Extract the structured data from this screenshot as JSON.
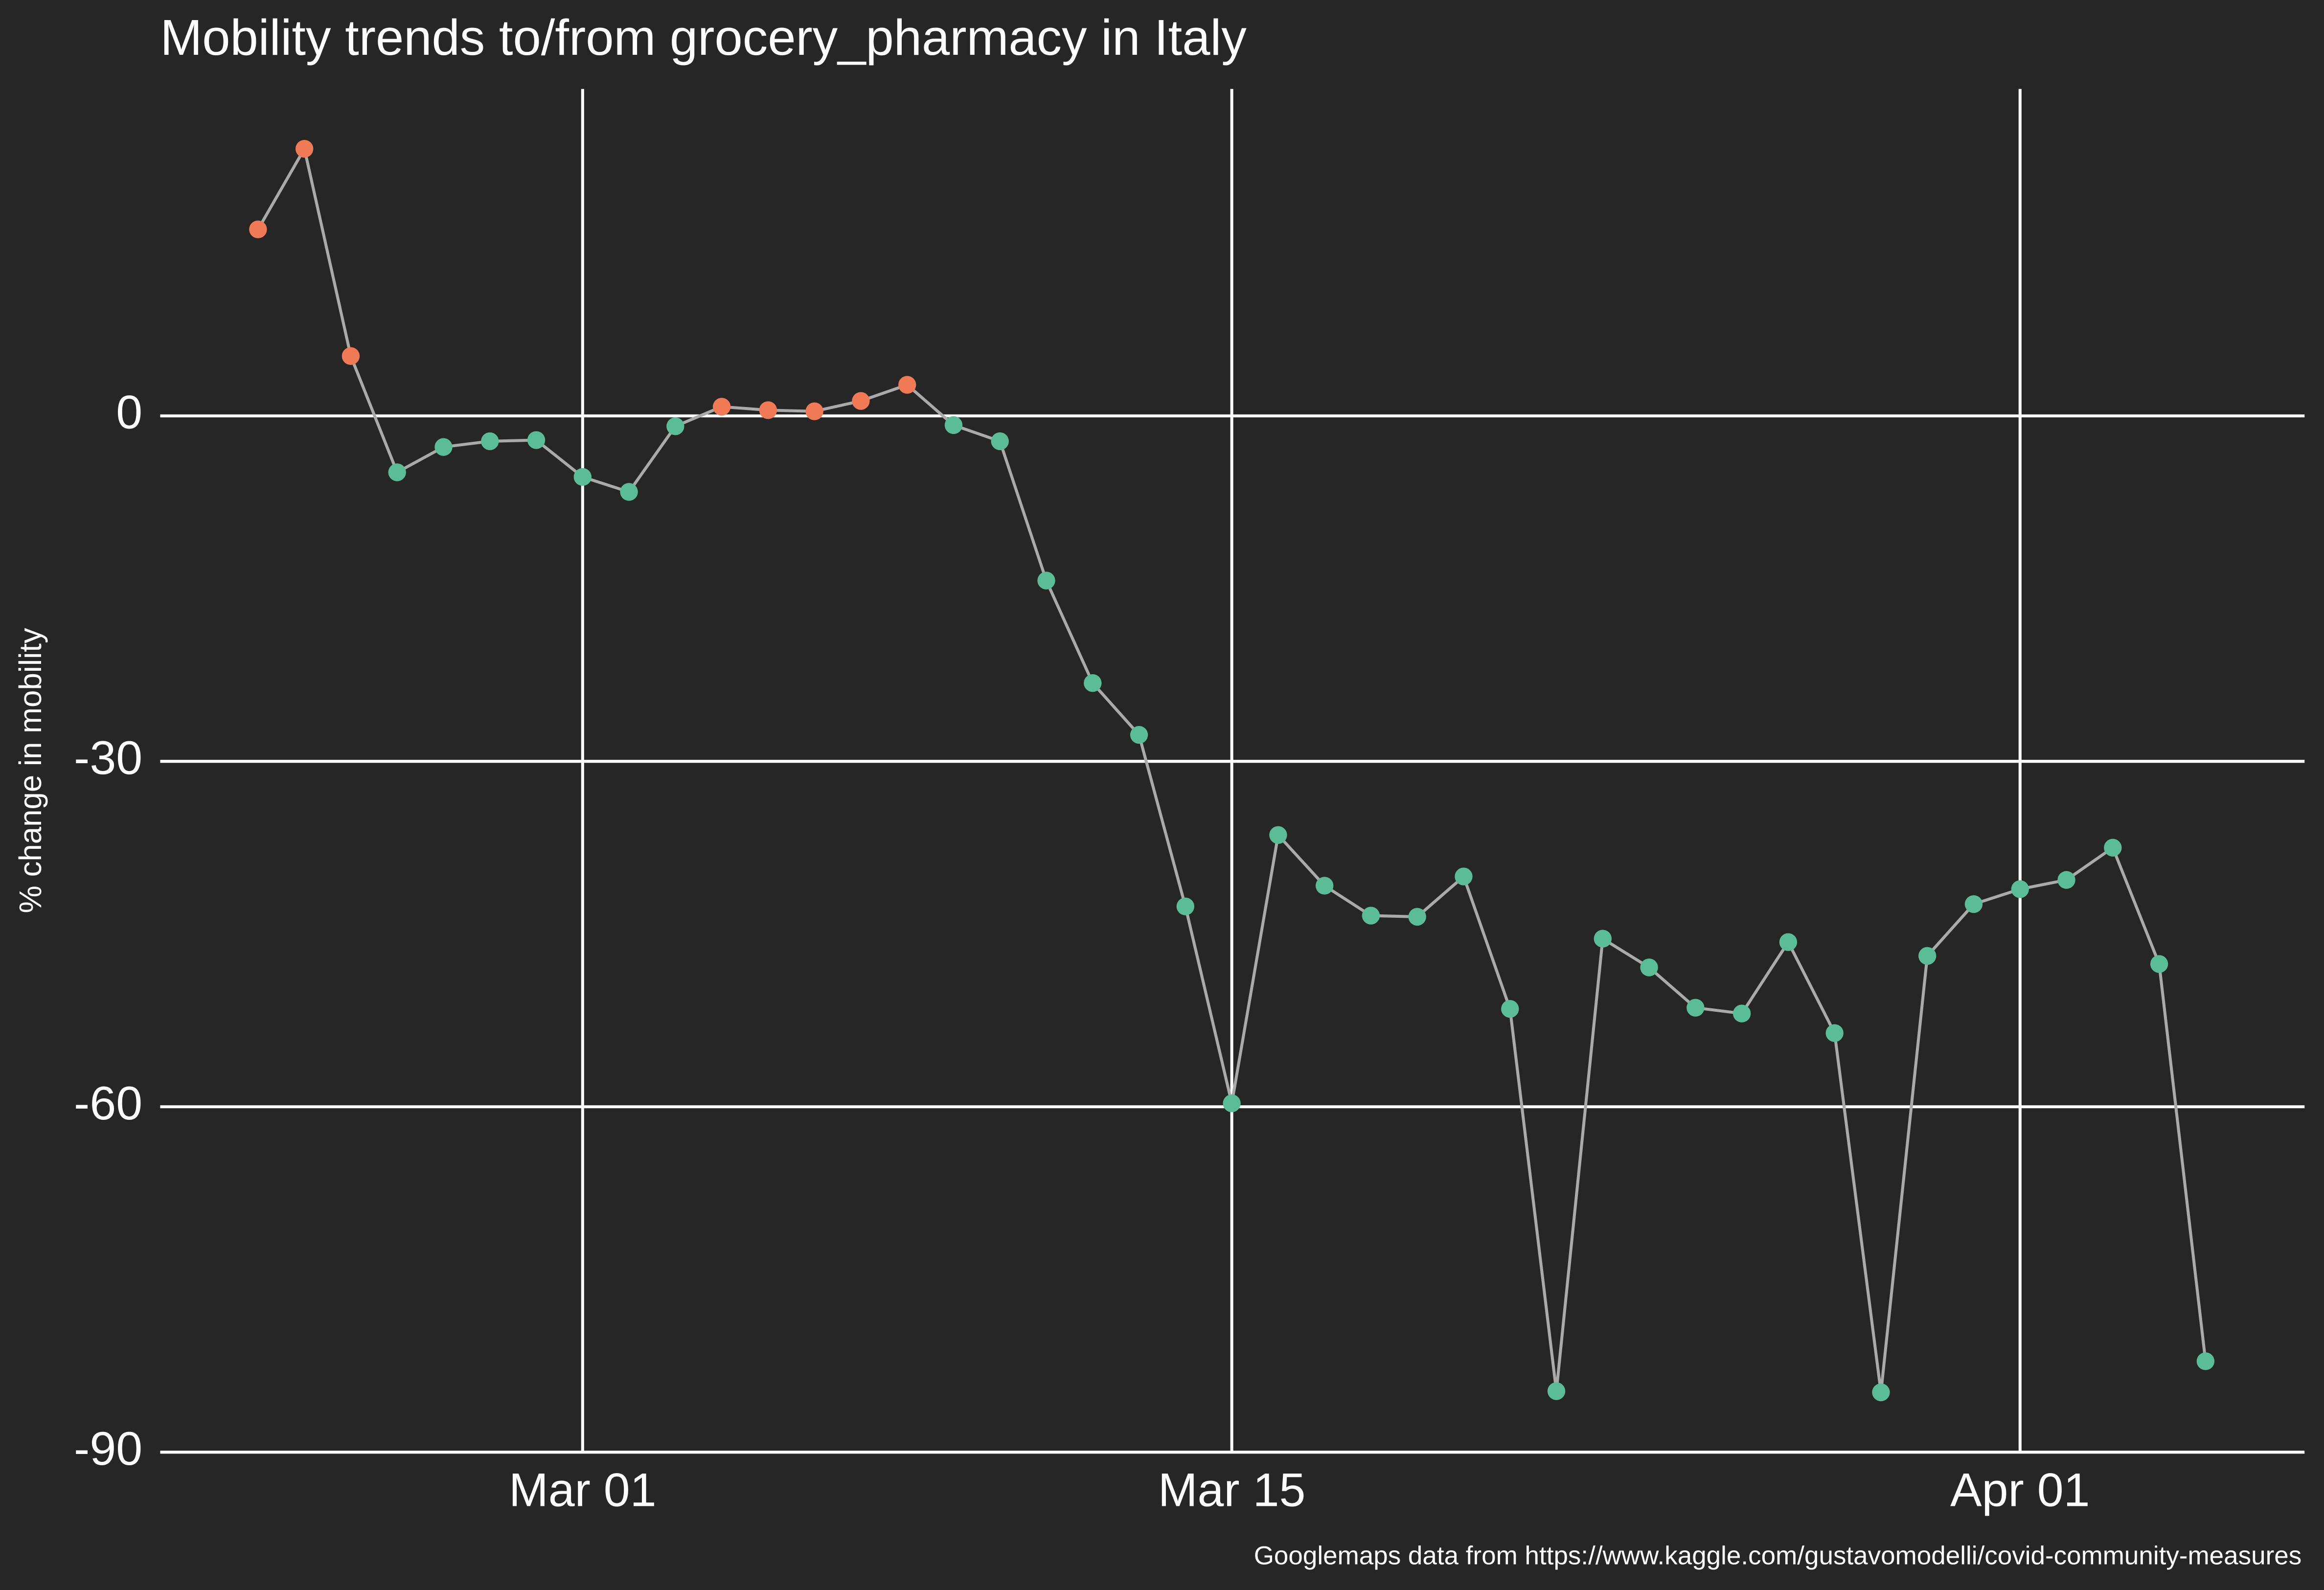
{
  "chart_data": {
    "type": "line",
    "title": "Mobility trends to/from grocery_pharmacy in Italy",
    "ylabel": "% change in mobility",
    "caption": "Googlemaps data from https://www.kaggle.com/gustavomodelli/covid-community-measures",
    "x": [
      "Feb 23",
      "Feb 24",
      "Feb 25",
      "Feb 26",
      "Feb 27",
      "Feb 28",
      "Feb 29",
      "Mar 01",
      "Mar 02",
      "Mar 03",
      "Mar 04",
      "Mar 05",
      "Mar 06",
      "Mar 07",
      "Mar 08",
      "Mar 09",
      "Mar 10",
      "Mar 11",
      "Mar 12",
      "Mar 13",
      "Mar 14",
      "Mar 15",
      "Mar 16",
      "Mar 17",
      "Mar 18",
      "Mar 19",
      "Mar 20",
      "Mar 21",
      "Mar 22",
      "Mar 23",
      "Mar 24",
      "Mar 25",
      "Mar 26",
      "Mar 27",
      "Mar 28",
      "Mar 29",
      "Mar 30",
      "Mar 31",
      "Apr 01",
      "Apr 02",
      "Apr 03",
      "Apr 04",
      "Apr 05"
    ],
    "series": [
      {
        "color": "#aaaaaa",
        "values": [
          16.2,
          23.2,
          5.2,
          -4.9,
          -2.7,
          -2.2,
          -2.1,
          -5.3,
          -6.6,
          -0.9,
          0.8,
          0.5,
          0.4,
          1.3,
          2.7,
          -0.8,
          -2.2,
          -14.3,
          -23.2,
          -27.7,
          -42.6,
          -59.7,
          -36.4,
          -40.8,
          -43.4,
          -43.5,
          -40.0,
          -51.5,
          -84.7,
          -45.4,
          -47.9,
          -51.4,
          -51.9,
          -45.7,
          -53.6,
          -84.8,
          -46.9,
          -42.4,
          -41.1,
          -40.3,
          -37.5,
          -47.6,
          -82.1
        ],
        "point_colors": [
          "#f07a55",
          "#f07a55",
          "#f07a55",
          "#5bbd98",
          "#5bbd98",
          "#5bbd98",
          "#5bbd98",
          "#5bbd98",
          "#5bbd98",
          "#5bbd98",
          "#f07a55",
          "#f07a55",
          "#f07a55",
          "#f07a55",
          "#f07a55",
          "#5bbd98",
          "#5bbd98",
          "#5bbd98",
          "#5bbd98",
          "#5bbd98",
          "#5bbd98",
          "#5bbd98",
          "#5bbd98",
          "#5bbd98",
          "#5bbd98",
          "#5bbd98",
          "#5bbd98",
          "#5bbd98",
          "#5bbd98",
          "#5bbd98",
          "#5bbd98",
          "#5bbd98",
          "#5bbd98",
          "#5bbd98",
          "#5bbd98",
          "#5bbd98",
          "#5bbd98",
          "#5bbd98",
          "#5bbd98",
          "#5bbd98",
          "#5bbd98",
          "#5bbd98",
          "#5bbd98"
        ]
      }
    ],
    "ylim": [
      -90,
      28.4
    ],
    "yticks": [
      -90,
      -60,
      -30,
      0
    ],
    "xticks": [
      "Mar 01",
      "Mar 15",
      "Apr 01"
    ],
    "grid": true
  }
}
